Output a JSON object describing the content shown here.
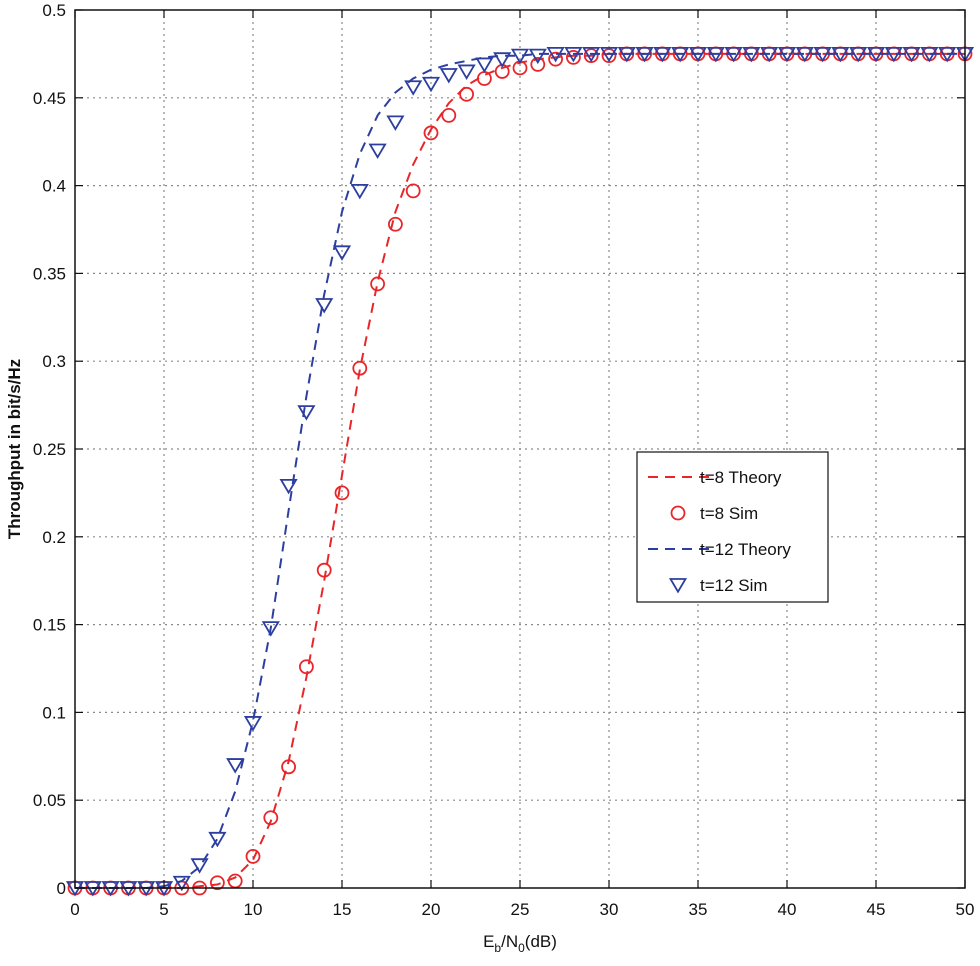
{
  "chart_data": {
    "type": "line",
    "title": "",
    "xlabel": "Eb/N0(dB)",
    "xlabel_parts": {
      "E": "E",
      "b": "b",
      "slash": "/N",
      "zero": "0",
      "unit": "(dB)"
    },
    "ylabel": "Throughput in bit/s/Hz",
    "xlim": [
      0,
      50
    ],
    "ylim": [
      0,
      0.5
    ],
    "xticks": [
      "0",
      "5",
      "10",
      "15",
      "20",
      "25",
      "30",
      "35",
      "40",
      "45",
      "50"
    ],
    "yticks": [
      "0",
      "0.05",
      "0.1",
      "0.15",
      "0.2",
      "0.25",
      "0.3",
      "0.35",
      "0.4",
      "0.45",
      "0.5"
    ],
    "grid": true,
    "legend_position": "center-right",
    "x": [
      0,
      1,
      2,
      3,
      4,
      5,
      6,
      7,
      8,
      9,
      10,
      11,
      12,
      13,
      14,
      15,
      16,
      17,
      18,
      19,
      20,
      21,
      22,
      23,
      24,
      25,
      26,
      27,
      28,
      29,
      30,
      31,
      32,
      33,
      34,
      35,
      36,
      37,
      38,
      39,
      40,
      41,
      42,
      43,
      44,
      45,
      46,
      47,
      48,
      49,
      50
    ],
    "series": [
      {
        "name": "t=8 Theory",
        "kind": "dashed-line",
        "color": "#e8262a",
        "values": [
          0,
          0,
          0,
          0,
          0,
          0,
          0,
          0.001,
          0.002,
          0.006,
          0.016,
          0.038,
          0.072,
          0.12,
          0.175,
          0.235,
          0.295,
          0.345,
          0.385,
          0.412,
          0.432,
          0.447,
          0.457,
          0.463,
          0.467,
          0.47,
          0.472,
          0.473,
          0.474,
          0.474,
          0.475,
          0.475,
          0.475,
          0.475,
          0.475,
          0.475,
          0.475,
          0.475,
          0.475,
          0.475,
          0.475,
          0.475,
          0.475,
          0.475,
          0.475,
          0.475,
          0.475,
          0.475,
          0.475,
          0.475,
          0.475
        ]
      },
      {
        "name": "t=8 Sim",
        "kind": "circle-markers",
        "color": "#e8262a",
        "values": [
          0,
          0,
          0,
          0,
          0,
          0,
          0,
          0,
          0.003,
          0.004,
          0.018,
          0.04,
          0.069,
          0.126,
          0.181,
          0.225,
          0.296,
          0.344,
          0.378,
          0.397,
          0.43,
          0.44,
          0.452,
          0.461,
          0.465,
          0.467,
          0.469,
          0.472,
          0.473,
          0.474,
          0.474,
          0.475,
          0.475,
          0.475,
          0.475,
          0.475,
          0.475,
          0.475,
          0.475,
          0.475,
          0.475,
          0.475,
          0.475,
          0.475,
          0.475,
          0.475,
          0.475,
          0.475,
          0.475,
          0.475,
          0.475
        ]
      },
      {
        "name": "t=12 Theory",
        "kind": "dashed-line",
        "color": "#2c3fa0",
        "values": [
          0,
          0,
          0,
          0,
          0,
          0.001,
          0.004,
          0.012,
          0.028,
          0.055,
          0.095,
          0.148,
          0.215,
          0.28,
          0.338,
          0.385,
          0.418,
          0.44,
          0.453,
          0.461,
          0.466,
          0.469,
          0.471,
          0.473,
          0.474,
          0.474,
          0.475,
          0.475,
          0.475,
          0.475,
          0.475,
          0.475,
          0.475,
          0.475,
          0.475,
          0.475,
          0.475,
          0.475,
          0.475,
          0.475,
          0.475,
          0.475,
          0.475,
          0.475,
          0.475,
          0.475,
          0.475,
          0.475,
          0.475,
          0.475,
          0.475
        ]
      },
      {
        "name": "t=12 Sim",
        "kind": "triangle-markers",
        "color": "#2c3fa0",
        "values": [
          0,
          0,
          0,
          0,
          0,
          0,
          0.003,
          0.013,
          0.028,
          0.07,
          0.094,
          0.148,
          0.229,
          0.271,
          0.332,
          0.362,
          0.397,
          0.42,
          0.436,
          0.456,
          0.458,
          0.463,
          0.465,
          0.469,
          0.472,
          0.474,
          0.474,
          0.475,
          0.475,
          0.475,
          0.475,
          0.475,
          0.475,
          0.475,
          0.475,
          0.475,
          0.475,
          0.475,
          0.475,
          0.475,
          0.475,
          0.475,
          0.475,
          0.475,
          0.475,
          0.475,
          0.475,
          0.475,
          0.475,
          0.475,
          0.475
        ]
      }
    ]
  }
}
